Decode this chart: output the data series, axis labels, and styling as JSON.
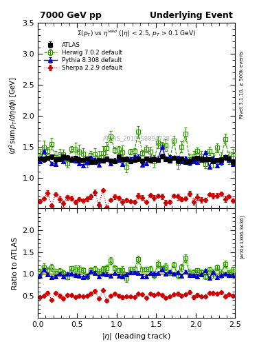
{
  "title_left": "7000 GeV pp",
  "title_right": "Underlying Event",
  "subtitle": "$\\Sigma(p_T)$ vs $\\eta^{lead}$ ($|\\eta|$ < 2.5, $p_T$ > 0.1 GeV)",
  "watermark": "ATLAS_2010_S8894728",
  "right_label_top": "Rivet 3.1.10, ≥ 500k events",
  "right_label_bottom": "[arXiv:1306.3436]",
  "ylabel_main": "$\\langle d^2 {\\rm sum}\\, p_T/d\\eta d\\phi\\rangle$ [GeV]",
  "ylabel_ratio": "Ratio to ATLAS",
  "xlabel": "$|\\eta|$ (leading track)",
  "xlim": [
    0,
    2.5
  ],
  "ylim_main": [
    0.5,
    3.5
  ],
  "ylim_ratio": [
    0.0,
    2.5
  ],
  "yticks_main": [
    1.0,
    1.5,
    2.0,
    2.5,
    3.0,
    3.5
  ],
  "yticks_ratio": [
    0.5,
    1.0,
    1.5,
    2.0
  ],
  "atlas_color": "#000000",
  "herwig_color": "#339900",
  "pythia_color": "#0000cc",
  "sherpa_color": "#cc0000",
  "n_points": 50,
  "atlas_mean": 1.3,
  "herwig_mean": 1.42,
  "pythia_mean": 1.28,
  "sherpa_mean": 0.65,
  "atlas_noise": 0.025,
  "herwig_spread": 0.13,
  "pythia_spread": 0.055,
  "sherpa_spread": 0.07
}
